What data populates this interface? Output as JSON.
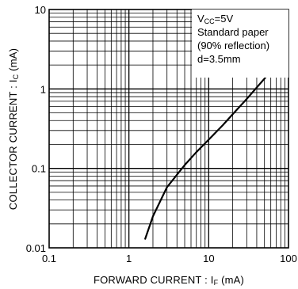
{
  "chart_data": {
    "type": "line",
    "x_scale": "log",
    "y_scale": "log",
    "xlim": [
      0.1,
      100
    ],
    "ylim": [
      0.01,
      10
    ],
    "x_ticks": [
      "0.1",
      "1",
      "10",
      "100"
    ],
    "y_ticks": [
      "0.01",
      "0.1",
      "1",
      "10"
    ],
    "grid": true,
    "xlabel": {
      "main": "FORWARD  CURRENT : I",
      "sub": "F",
      "unit": " (mA)"
    },
    "ylabel": {
      "main": "COLLECTOR  CURRENT : I",
      "sub": "C",
      "unit": " (mA)"
    },
    "annotation": {
      "line1_main": "V",
      "line1_sub": "CC",
      "line1_rest": "=5V",
      "line2": "Standard paper",
      "line3": "(90% reflection)",
      "line4": "d=3.5mm"
    },
    "series": [
      {
        "x": [
          1.6,
          2,
          3,
          5,
          7,
          10,
          15,
          20,
          30,
          50,
          70
        ],
        "y": [
          0.013,
          0.025,
          0.058,
          0.11,
          0.16,
          0.23,
          0.35,
          0.48,
          0.75,
          1.35,
          2.0
        ]
      }
    ]
  }
}
